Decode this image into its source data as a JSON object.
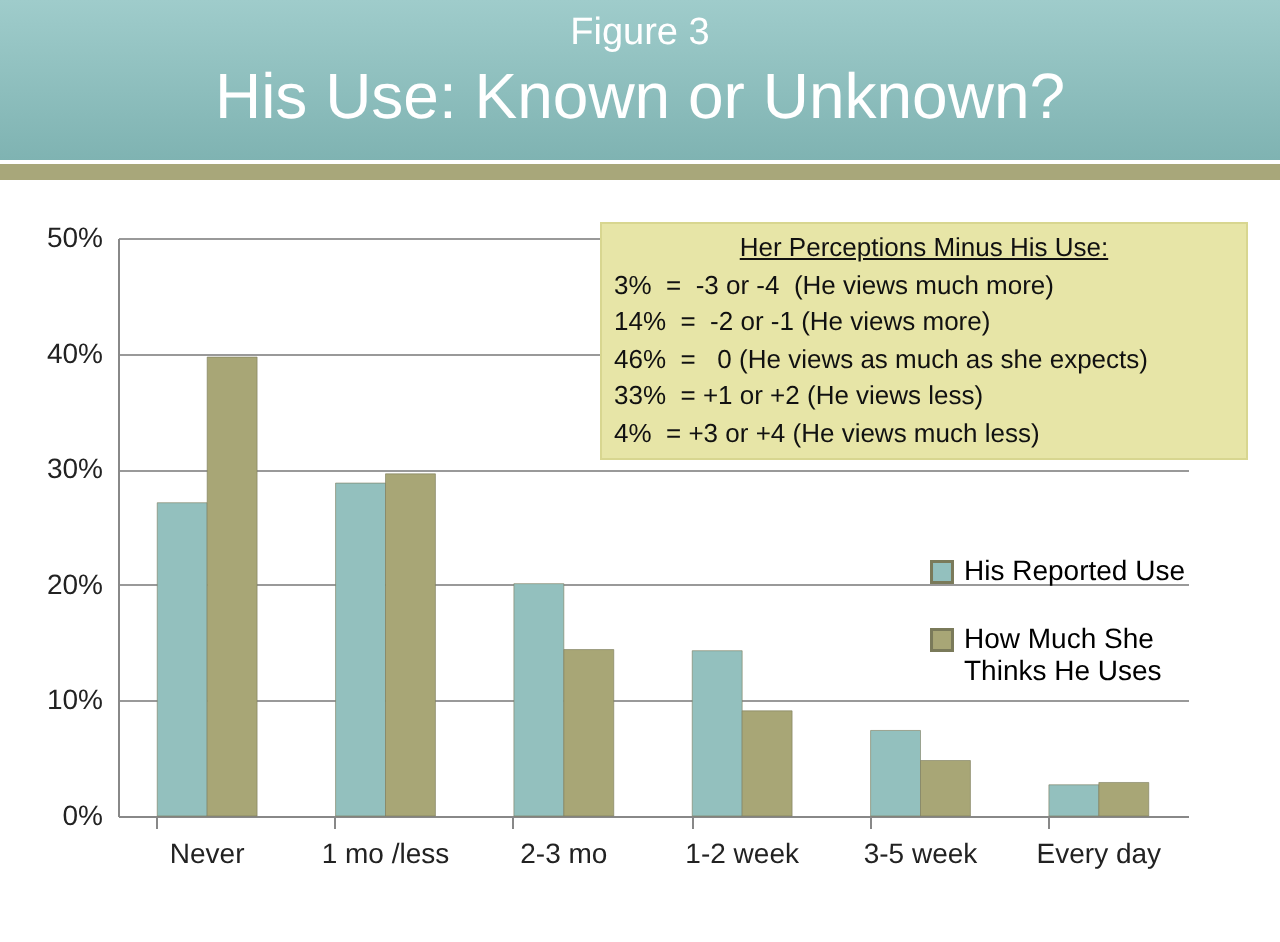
{
  "chart_data": {
    "type": "bar",
    "title": "His Use: Known or Unknown?",
    "subtitle": "Figure 3",
    "categories": [
      "Never",
      "1 mo /less",
      "2-3 mo",
      "1-2 week",
      "3-5 week",
      "Every day"
    ],
    "series": [
      {
        "name": "His Reported Use",
        "color": "#93c0be",
        "values": [
          27.1,
          28.8,
          20.1,
          14.3,
          7.4,
          2.7
        ]
      },
      {
        "name": "How Much She Thinks He Uses",
        "color": "#a8a676",
        "values": [
          39.7,
          29.6,
          14.4,
          9.1,
          4.8,
          2.9
        ]
      }
    ],
    "ylim": [
      0,
      50
    ],
    "yticks": [
      {
        "value": 0,
        "label": "0%"
      },
      {
        "value": 10,
        "label": "10%"
      },
      {
        "value": 20,
        "label": "20%"
      },
      {
        "value": 30,
        "label": "30%"
      },
      {
        "value": 40,
        "label": "40%"
      },
      {
        "value": 50,
        "label": "50%"
      }
    ],
    "grid": "y",
    "legend": "right",
    "annotations": [
      "Her Perceptions Minus His Use:",
      "3%  =  -3 or -4  (He views much more)",
      "14%  =  -2 or -1 (He views more)",
      "46%  =   0 (He views as much as she expects)",
      "33%  = +1 or +2 (He views less)",
      "4%  = +3 or +4 (He views much less)"
    ]
  }
}
